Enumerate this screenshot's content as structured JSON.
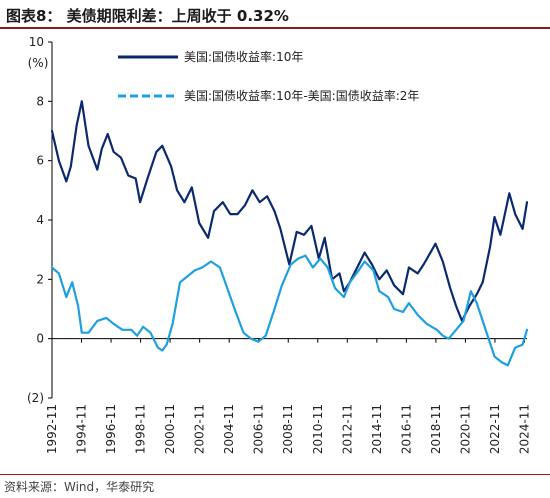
{
  "header": {
    "title": "图表8：  美债期限利差：上周收于 0.32%"
  },
  "footer": {
    "source": "资料来源：Wind，华泰研究"
  },
  "colors": {
    "series_10y": "#0b2a6e",
    "series_spread": "#1ea0e0",
    "title_rule": "#8c1d18"
  },
  "chart_data": {
    "type": "line",
    "title": "",
    "ylabel": "(%)",
    "xlabel": "",
    "ylim": [
      -2,
      10
    ],
    "ytick_values": [
      -2,
      0,
      2,
      4,
      6,
      8,
      10
    ],
    "ytick_labels": [
      "(2)",
      "0",
      "2",
      "4",
      "6",
      "8",
      "10"
    ],
    "xlim": [
      1992.83,
      2025.0
    ],
    "xtick_labels": [
      "1992-11",
      "1994-11",
      "1996-11",
      "1998-11",
      "2000-11",
      "2002-11",
      "2004-11",
      "2006-11",
      "2008-11",
      "2010-11",
      "2012-11",
      "2014-11",
      "2016-11",
      "2018-11",
      "2020-11",
      "2022-11",
      "2024-11"
    ],
    "grid": false,
    "legend": "top",
    "series": [
      {
        "name": "美国:国债收益率:10年",
        "style": "solid",
        "x": [
          1992.83,
          1993.3,
          1993.8,
          1994.1,
          1994.5,
          1994.85,
          1995.3,
          1995.9,
          1996.2,
          1996.6,
          1997.0,
          1997.5,
          1998.0,
          1998.5,
          1998.8,
          1999.3,
          1999.9,
          2000.3,
          2000.9,
          2001.3,
          2001.8,
          2002.3,
          2002.8,
          2003.4,
          2003.8,
          2004.4,
          2004.9,
          2005.4,
          2005.9,
          2006.4,
          2006.9,
          2007.4,
          2007.9,
          2008.3,
          2008.9,
          2009.4,
          2009.9,
          2010.4,
          2010.9,
          2011.3,
          2011.8,
          2012.3,
          2012.6,
          2013.0,
          2013.6,
          2014.0,
          2014.5,
          2015.0,
          2015.5,
          2016.0,
          2016.6,
          2017.0,
          2017.6,
          2018.0,
          2018.8,
          2019.3,
          2019.8,
          2020.2,
          2020.6,
          2021.1,
          2021.6,
          2022.0,
          2022.5,
          2022.8,
          2023.2,
          2023.8,
          2024.2,
          2024.7,
          2025.0
        ],
        "values": [
          7.0,
          6.0,
          5.3,
          5.8,
          7.2,
          8.0,
          6.5,
          5.7,
          6.4,
          6.9,
          6.3,
          6.1,
          5.5,
          5.4,
          4.6,
          5.4,
          6.3,
          6.5,
          5.8,
          5.0,
          4.6,
          5.1,
          3.9,
          3.4,
          4.3,
          4.6,
          4.2,
          4.2,
          4.5,
          5.0,
          4.6,
          4.8,
          4.3,
          3.7,
          2.5,
          3.6,
          3.5,
          3.8,
          2.7,
          3.4,
          2.0,
          2.2,
          1.6,
          1.9,
          2.5,
          2.9,
          2.5,
          2.0,
          2.3,
          1.8,
          1.5,
          2.4,
          2.2,
          2.5,
          3.2,
          2.6,
          1.7,
          1.1,
          0.6,
          1.1,
          1.5,
          1.9,
          3.1,
          4.1,
          3.5,
          4.9,
          4.2,
          3.7,
          4.6
        ]
      },
      {
        "name": "美国:国债收益率:10年-美国:国债收益率:2年",
        "style": "dashed",
        "x": [
          1992.83,
          1993.3,
          1993.8,
          1994.2,
          1994.6,
          1994.85,
          1995.3,
          1995.9,
          1996.5,
          1997.0,
          1997.6,
          1998.2,
          1998.6,
          1999.0,
          1999.5,
          2000.0,
          2000.3,
          2000.6,
          2001.0,
          2001.5,
          2002.0,
          2002.5,
          2003.0,
          2003.6,
          2004.2,
          2004.7,
          2005.2,
          2005.8,
          2006.3,
          2006.8,
          2007.3,
          2007.9,
          2008.4,
          2009.0,
          2009.5,
          2010.0,
          2010.5,
          2011.0,
          2011.5,
          2012.0,
          2012.6,
          2013.0,
          2013.6,
          2014.0,
          2014.6,
          2015.0,
          2015.6,
          2016.0,
          2016.6,
          2017.0,
          2017.6,
          2018.2,
          2018.9,
          2019.3,
          2019.7,
          2020.2,
          2020.7,
          2021.2,
          2021.6,
          2022.0,
          2022.4,
          2022.8,
          2023.3,
          2023.7,
          2024.2,
          2024.7,
          2025.0
        ],
        "values": [
          2.4,
          2.2,
          1.4,
          1.9,
          1.1,
          0.2,
          0.2,
          0.6,
          0.7,
          0.5,
          0.3,
          0.3,
          0.1,
          0.4,
          0.2,
          -0.3,
          -0.4,
          -0.2,
          0.5,
          1.9,
          2.1,
          2.3,
          2.4,
          2.6,
          2.4,
          1.7,
          1.0,
          0.2,
          0.0,
          -0.1,
          0.1,
          1.0,
          1.8,
          2.5,
          2.7,
          2.8,
          2.4,
          2.7,
          2.4,
          1.7,
          1.4,
          1.9,
          2.3,
          2.6,
          2.3,
          1.6,
          1.4,
          1.0,
          0.9,
          1.2,
          0.8,
          0.5,
          0.3,
          0.1,
          0.0,
          0.3,
          0.6,
          1.6,
          1.2,
          0.6,
          0.0,
          -0.6,
          -0.8,
          -0.9,
          -0.3,
          -0.2,
          0.3
        ]
      }
    ]
  }
}
